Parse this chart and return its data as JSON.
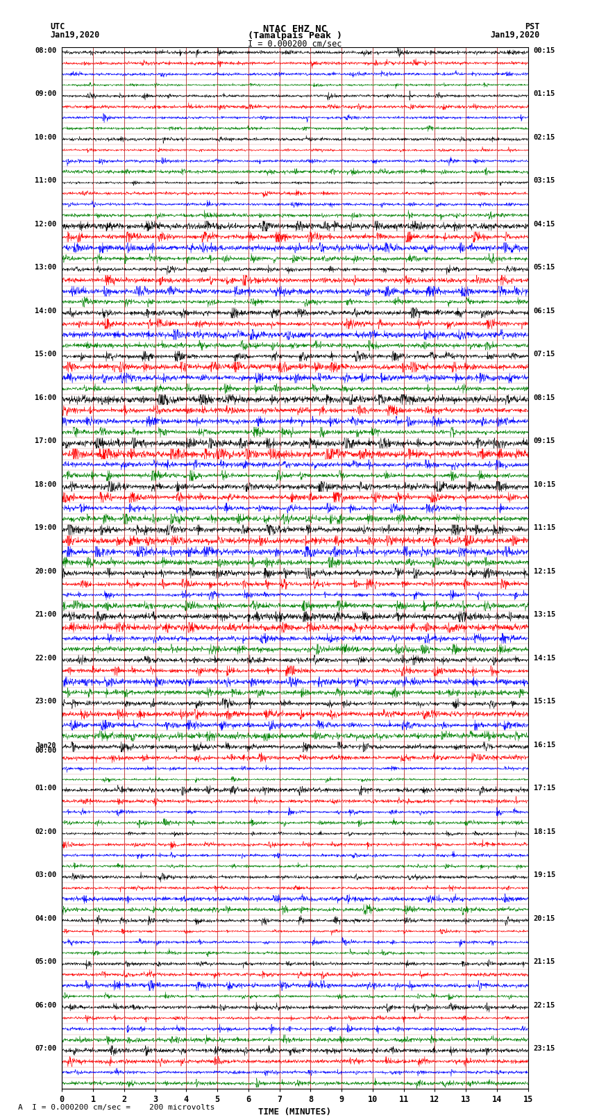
{
  "title_line1": "NTAC EHZ NC",
  "title_line2": "(Tamalpais Peak )",
  "scale_label": "I = 0.000200 cm/sec",
  "footer_label": "A  I = 0.000200 cm/sec =    200 microvolts",
  "left_date_line1": "UTC",
  "left_date_line2": "Jan19,2020",
  "right_date_line1": "PST",
  "right_date_line2": "Jan19,2020",
  "xlabel": "TIME (MINUTES)",
  "x_ticks": [
    0,
    1,
    2,
    3,
    4,
    5,
    6,
    7,
    8,
    9,
    10,
    11,
    12,
    13,
    14,
    15
  ],
  "x_lim": [
    0,
    15
  ],
  "colors": [
    "black",
    "red",
    "blue",
    "green"
  ],
  "background_color": "white",
  "grid_color": "#aa0000",
  "n_rows": 96,
  "left_labels_utc": [
    "08:00",
    "09:00",
    "10:00",
    "11:00",
    "12:00",
    "13:00",
    "14:00",
    "15:00",
    "16:00",
    "17:00",
    "18:00",
    "19:00",
    "20:00",
    "21:00",
    "22:00",
    "23:00",
    "Jan20\n00:00",
    "01:00",
    "02:00",
    "03:00",
    "04:00",
    "05:00",
    "06:00",
    "07:00"
  ],
  "right_labels_pst": [
    "00:15",
    "01:15",
    "02:15",
    "03:15",
    "04:15",
    "05:15",
    "06:15",
    "07:15",
    "08:15",
    "09:15",
    "10:15",
    "11:15",
    "12:15",
    "13:15",
    "14:15",
    "15:15",
    "16:15",
    "17:15",
    "18:15",
    "19:15",
    "20:15",
    "21:15",
    "22:15",
    "23:15"
  ],
  "signal_seed": 12345,
  "n_points": 1800,
  "event_row": 16,
  "event_col_min": 9.3,
  "event_amplitude": 0.38
}
